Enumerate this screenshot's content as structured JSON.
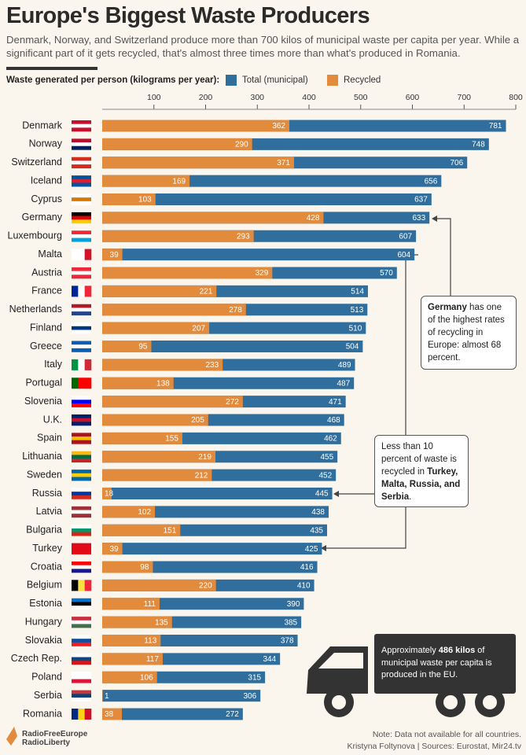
{
  "chart_data": {
    "type": "bar",
    "title": "Europe's Biggest Waste Producers",
    "subtitle": "Denmark, Norway, and Switzerland produce more than 700 kilos of municipal waste per capita per year. While a significant part of it gets recycled, that's almost three times more than what's produced in Romania.",
    "axis_label": "Waste generated per person (kilograms per year):",
    "categories": [
      "Denmark",
      "Norway",
      "Switzerland",
      "Iceland",
      "Cyprus",
      "Germany",
      "Luxembourg",
      "Malta",
      "Austria",
      "France",
      "Netherlands",
      "Finland",
      "Greece",
      "Italy",
      "Portugal",
      "Slovenia",
      "U.K.",
      "Spain",
      "Lithuania",
      "Sweden",
      "Russia",
      "Latvia",
      "Bulgaria",
      "Turkey",
      "Croatia",
      "Belgium",
      "Estonia",
      "Hungary",
      "Slovakia",
      "Czech Rep.",
      "Poland",
      "Serbia",
      "Romania"
    ],
    "series": [
      {
        "name": "Total (municipal)",
        "color": "#2f6e9d",
        "values": [
          781,
          748,
          706,
          656,
          637,
          633,
          607,
          604,
          570,
          514,
          513,
          510,
          504,
          489,
          487,
          471,
          468,
          462,
          455,
          452,
          445,
          438,
          435,
          425,
          416,
          410,
          390,
          385,
          378,
          344,
          315,
          306,
          272
        ]
      },
      {
        "name": "Recycled",
        "color": "#e38b3d",
        "values": [
          362,
          290,
          371,
          169,
          103,
          428,
          293,
          39,
          329,
          221,
          278,
          207,
          95,
          233,
          138,
          272,
          205,
          155,
          219,
          212,
          18,
          102,
          151,
          39,
          98,
          220,
          111,
          135,
          113,
          117,
          106,
          1,
          38
        ]
      }
    ],
    "xlim": [
      0,
      800
    ],
    "xticks": [
      100,
      200,
      300,
      400,
      500,
      600,
      700,
      800
    ],
    "annotations": [
      {
        "parts": [
          {
            "text": "Germany",
            "bold": true
          },
          {
            "text": " has one of the highest rates of recycling in Europe: almost 68 percent."
          }
        ]
      },
      {
        "parts": [
          {
            "text": "Less than 10 percent of waste is recycled in "
          },
          {
            "text": "Turkey, Malta, Russia, and Serbia",
            "bold": true
          },
          {
            "text": "."
          }
        ]
      },
      {
        "parts": [
          {
            "text": "Approximately "
          },
          {
            "text": "486 kilos",
            "bold": true
          },
          {
            "text": " of municipal waste per capita is produced in the EU."
          }
        ]
      }
    ],
    "note": "Note: Data not available for all countries.",
    "source": "Kristyna Foltynova | Sources: Eurostat, Mir24.tv",
    "logo": [
      "RadioFreeEurope",
      "RadioLiberty"
    ]
  }
}
